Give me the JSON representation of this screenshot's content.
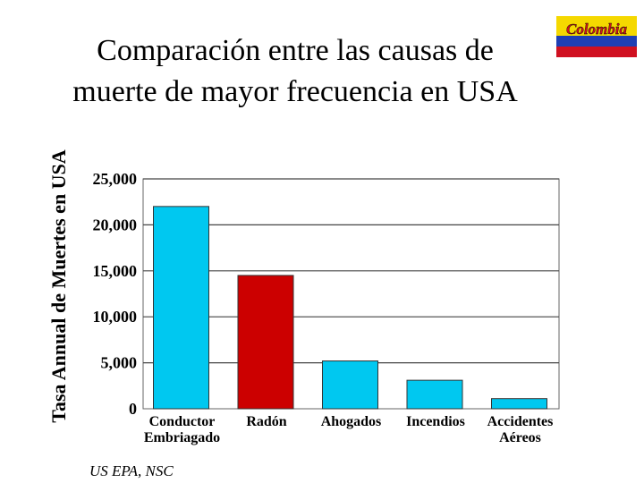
{
  "header": {
    "title_line1": "Comparación entre las causas de",
    "title_line2": "muerte de mayor frecuencia en USA"
  },
  "logo": {
    "text": "Colombia",
    "colors": [
      "#f5d800",
      "#1f3fb4",
      "#d01020"
    ]
  },
  "source": "US EPA, NSC",
  "chart_data": {
    "type": "bar",
    "title": "Comparación entre las causas de muerte de mayor frecuencia en USA",
    "ylabel": "Tasa Annual de Muertes en USA",
    "xlabel": "",
    "ylim": [
      0,
      25000
    ],
    "yticks": [
      0,
      5000,
      10000,
      15000,
      20000,
      25000
    ],
    "ytick_labels": [
      "0",
      "5,000",
      "10,000",
      "15,000",
      "20,000",
      "25,000"
    ],
    "grid": true,
    "categories": [
      [
        "Conductor",
        "Embriagado"
      ],
      [
        "Radón"
      ],
      [
        "Ahogados"
      ],
      [
        "Incendios"
      ],
      [
        "Accidentes",
        "Aéreos"
      ]
    ],
    "values": [
      22000,
      14500,
      5200,
      3100,
      1100
    ],
    "bar_colors": [
      "#00c8f0",
      "#cc0000",
      "#00c8f0",
      "#00c8f0",
      "#00c8f0"
    ]
  }
}
